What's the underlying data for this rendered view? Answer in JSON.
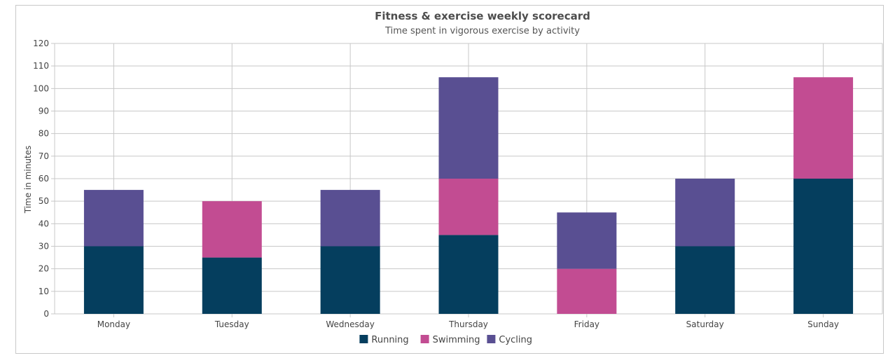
{
  "chart_data": {
    "type": "bar",
    "stacked": true,
    "title": "Fitness & exercise weekly scorecard",
    "subtitle": "Time spent in vigorous exercise by activity",
    "xlabel": "",
    "ylabel": "Time in minutes",
    "ylim": [
      0,
      120
    ],
    "yticks": [
      0,
      10,
      20,
      30,
      40,
      50,
      60,
      70,
      80,
      90,
      100,
      110,
      120
    ],
    "grid": true,
    "legend_position": "bottom",
    "categories": [
      "Monday",
      "Tuesday",
      "Wednesday",
      "Thursday",
      "Friday",
      "Saturday",
      "Sunday"
    ],
    "series": [
      {
        "name": "Running",
        "color": "#053e5e",
        "values": [
          30,
          25,
          30,
          35,
          0,
          30,
          60
        ]
      },
      {
        "name": "Swimming",
        "color": "#c24c92",
        "values": [
          0,
          25,
          0,
          25,
          20,
          0,
          45
        ]
      },
      {
        "name": "Cycling",
        "color": "#594f92",
        "values": [
          25,
          0,
          25,
          45,
          25,
          30,
          0
        ]
      }
    ]
  }
}
